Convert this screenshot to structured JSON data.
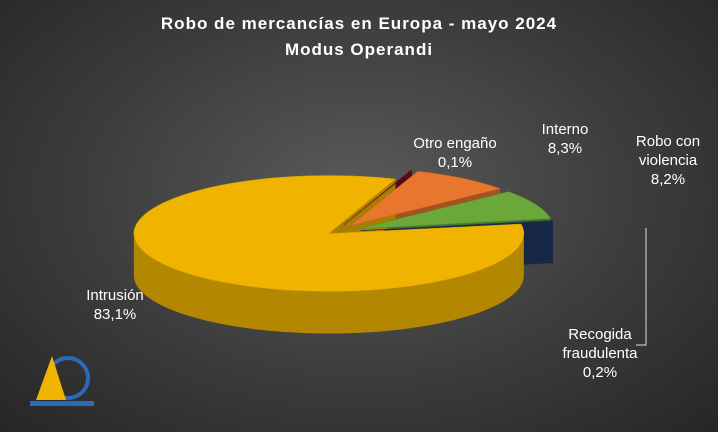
{
  "chart_data": {
    "type": "pie3d",
    "title": "Robo de mercancías en Europa - mayo 2024",
    "subtitle": "Modus Operandi",
    "categories": [
      "Otro engaño",
      "Interno",
      "Robo con violencia",
      "Recogida fraudulenta",
      "Intrusión"
    ],
    "values": [
      0.1,
      8.3,
      8.2,
      0.2,
      83.1
    ],
    "value_labels": [
      "0,1%",
      "8,3%",
      "8,2%",
      "0,2%",
      "83,1%"
    ],
    "colors": [
      "#7a0b22",
      "#e8762c",
      "#6aa83a",
      "#1f3864",
      "#f0b400"
    ]
  }
}
